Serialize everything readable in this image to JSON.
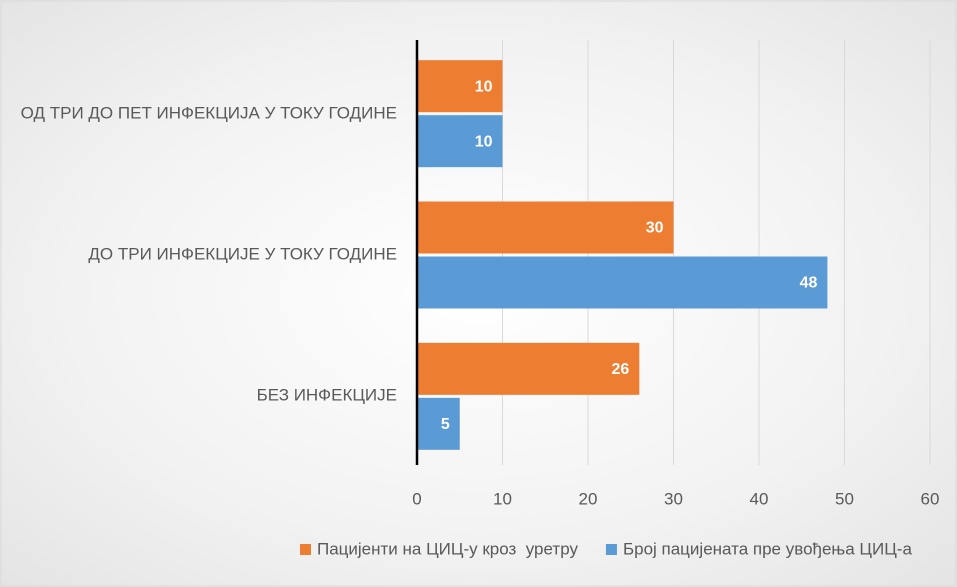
{
  "chart_data": {
    "type": "bar",
    "orientation": "horizontal",
    "categories": [
      "ОД ТРИ ДО ПЕТ ИНФЕКЦИЈА У ТОКУ ГОДИНЕ",
      "ДО ТРИ ИНФЕКЦИЈЕ У ТОКУ ГОДИНЕ",
      "БЕЗ ИНФЕКЦИЈЕ"
    ],
    "series": [
      {
        "name": "Пацијенти на ЦИЦ-у кроз  уретру",
        "color": "#ed7d31",
        "values": [
          10,
          30,
          26
        ]
      },
      {
        "name": "Број пацијената пре увођења ЦИЦ-а",
        "color": "#5b9bd5",
        "values": [
          10,
          48,
          5
        ]
      }
    ],
    "xlim": [
      0,
      60
    ],
    "xticks": [
      0,
      10,
      20,
      30,
      40,
      50,
      60
    ],
    "grid": true,
    "legend": "bottom"
  }
}
